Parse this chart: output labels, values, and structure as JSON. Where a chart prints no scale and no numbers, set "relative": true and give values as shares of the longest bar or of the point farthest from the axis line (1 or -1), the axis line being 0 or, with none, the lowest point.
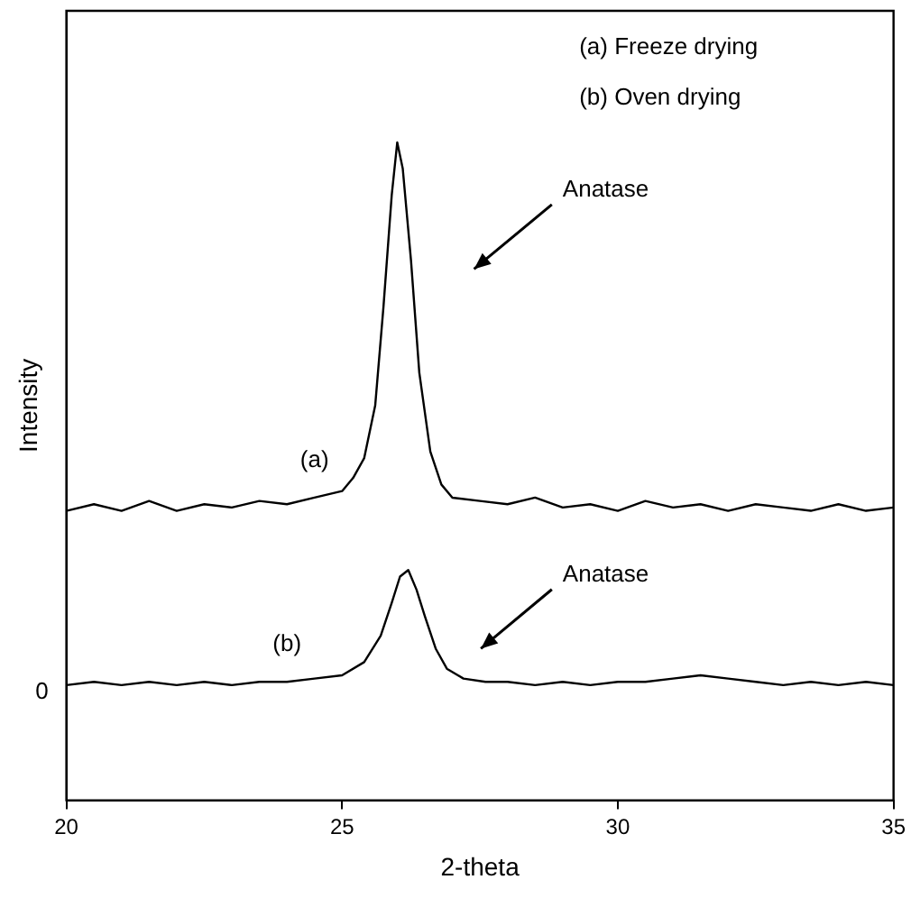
{
  "chart_data": {
    "type": "line",
    "xlabel": "2-theta",
    "ylabel": "Intensity",
    "relative": true,
    "xlim": [
      20,
      35
    ],
    "xticks": [
      20,
      25,
      30,
      35
    ],
    "marker": "none",
    "legend": false,
    "grid": false,
    "series": [
      {
        "name": "(a)",
        "color": "#000000",
        "x": [
          20,
          20.5,
          21,
          21.5,
          22,
          22.5,
          23,
          23.5,
          24,
          24.5,
          25,
          25.2,
          25.4,
          25.6,
          25.75,
          25.9,
          26.0,
          26.1,
          26.25,
          26.4,
          26.6,
          26.8,
          27,
          27.5,
          28,
          28.5,
          29,
          29.5,
          30,
          30.5,
          31,
          31.5,
          32,
          32.5,
          33,
          33.5,
          34,
          34.5,
          35
        ],
        "values": [
          0.44,
          0.45,
          0.44,
          0.455,
          0.44,
          0.45,
          0.445,
          0.455,
          0.45,
          0.46,
          0.47,
          0.49,
          0.52,
          0.6,
          0.75,
          0.92,
          1.0,
          0.96,
          0.82,
          0.65,
          0.53,
          0.48,
          0.46,
          0.455,
          0.45,
          0.46,
          0.445,
          0.45,
          0.44,
          0.455,
          0.445,
          0.45,
          0.44,
          0.45,
          0.445,
          0.44,
          0.45,
          0.44,
          0.445
        ]
      },
      {
        "name": "(b)",
        "color": "#000000",
        "x": [
          20,
          20.5,
          21,
          21.5,
          22,
          22.5,
          23,
          23.5,
          24,
          24.5,
          25,
          25.4,
          25.7,
          25.9,
          26.05,
          26.2,
          26.35,
          26.5,
          26.7,
          26.9,
          27.2,
          27.6,
          28,
          28.5,
          29,
          29.5,
          30,
          30.5,
          31,
          31.5,
          32,
          32.5,
          33,
          33.5,
          34,
          34.5,
          35
        ],
        "values": [
          0.175,
          0.18,
          0.175,
          0.18,
          0.175,
          0.18,
          0.175,
          0.18,
          0.18,
          0.185,
          0.19,
          0.21,
          0.25,
          0.3,
          0.34,
          0.35,
          0.32,
          0.28,
          0.23,
          0.2,
          0.185,
          0.18,
          0.18,
          0.175,
          0.18,
          0.175,
          0.18,
          0.18,
          0.185,
          0.19,
          0.185,
          0.18,
          0.175,
          0.18,
          0.175,
          0.18,
          0.175
        ]
      }
    ],
    "annotations": [
      "(a) Freeze drying",
      "(b) Oven drying",
      "0",
      "Anatase",
      "Anatase"
    ]
  }
}
